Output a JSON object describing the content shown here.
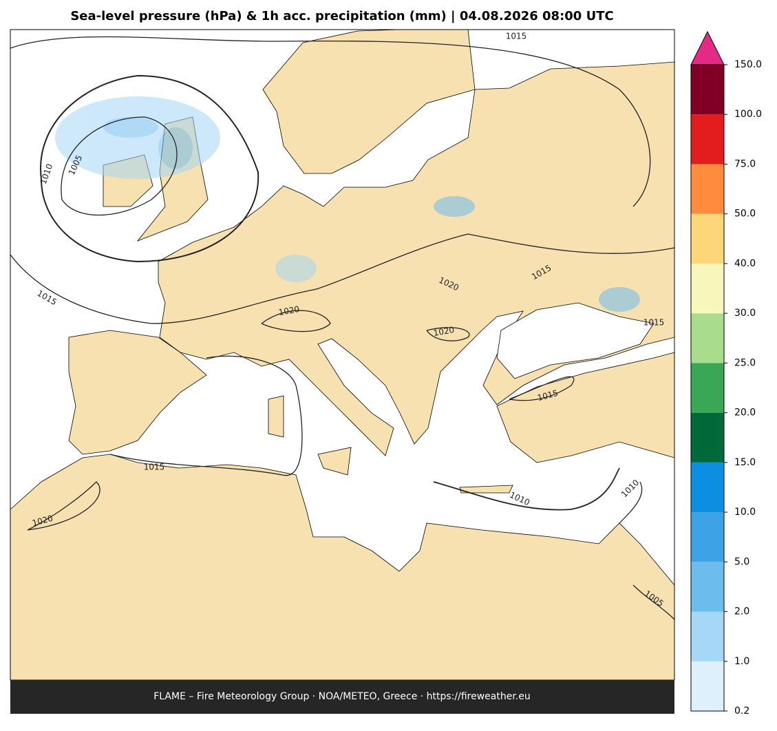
{
  "header": {
    "title": "Sea-level pressure (hPa) & 1h acc. precipitation (mm)  |  04.08.2026 08:00 UTC"
  },
  "footer": {
    "text": "FLAME – Fire Meteorology Group · NOA/METEO, Greece · https://fireweather.eu"
  },
  "colorbar": {
    "levels": [
      "0.2",
      "1.0",
      "2.0",
      "5.0",
      "10.0",
      "15.0",
      "20.0",
      "25.0",
      "30.0",
      "40.0",
      "50.0",
      "75.0",
      "100.0",
      "150.0"
    ],
    "colors": [
      "#ddf0fc",
      "#a6d7f6",
      "#6dbcee",
      "#3ea3e6",
      "#0c8fe0",
      "#00693a",
      "#3aa757",
      "#a9dc8d",
      "#f7f7bb",
      "#fdd67a",
      "#fe8c3c",
      "#e31c1d",
      "#800026"
    ],
    "extend_color": "#e52a86"
  },
  "contour_labels": [
    "1015",
    "1010",
    "1005",
    "1015",
    "1020",
    "1020",
    "1015",
    "1015",
    "1020",
    "1015",
    "1015",
    "1010",
    "1010",
    "1020",
    "1005"
  ]
}
